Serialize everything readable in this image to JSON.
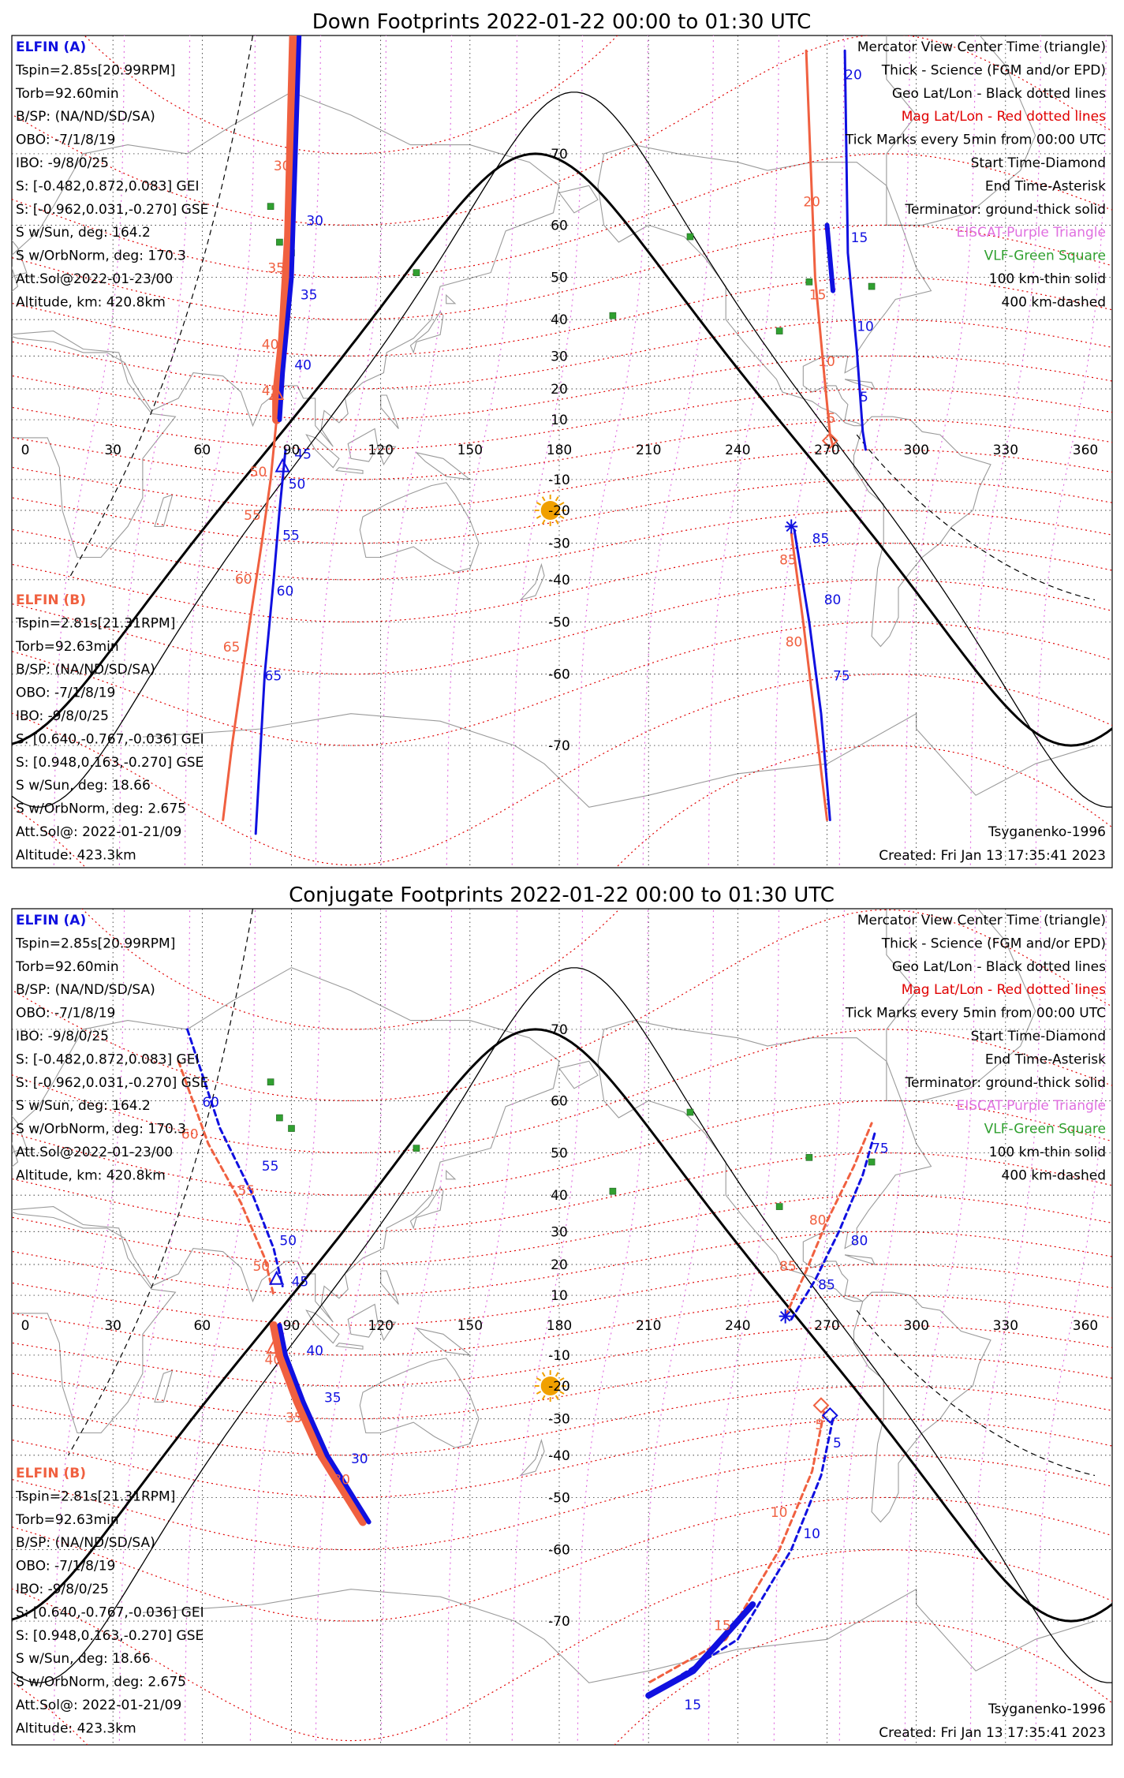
{
  "colors": {
    "a": "#1010e0",
    "b": "#f06040",
    "mag": "#e00000",
    "geo": "#000000",
    "eiscat": "#e070e0",
    "vlf": "#30a030",
    "sun": "#f0a000"
  },
  "lon_ticks": [
    "0",
    "30",
    "60",
    "90",
    "120",
    "150",
    "180",
    "210",
    "240",
    "270",
    "300",
    "330",
    "360"
  ],
  "panels": [
    {
      "title": "Down Footprints 2022-01-22 00:00 to 01:30 UTC",
      "lat_ticks": [
        {
          "v": 70,
          "t": "70"
        },
        {
          "v": 60,
          "t": "60"
        },
        {
          "v": 50,
          "t": "50"
        },
        {
          "v": 40,
          "t": "40"
        },
        {
          "v": 30,
          "t": "30"
        },
        {
          "v": 20,
          "t": "20"
        },
        {
          "v": 10,
          "t": "10"
        },
        {
          "v": -10,
          "t": "-10"
        },
        {
          "v": -20,
          "t": "-20"
        },
        {
          "v": -30,
          "t": "-30"
        },
        {
          "v": -40,
          "t": "-40"
        },
        {
          "v": -50,
          "t": "-50"
        },
        {
          "v": -60,
          "t": "-60"
        },
        {
          "v": -70,
          "t": "-70"
        }
      ],
      "info_a": [
        "ELFIN (A)",
        "Tspin=2.85s[20.99RPM]",
        "Torb=92.60min",
        "B/SP: (NA/ND/SD/SA)",
        "OBO: -7/1/8/19",
        "IBO: -9/8/0/25",
        "S: [-0.482,0.872,0.083] GEI",
        "S: [-0.962,0.031,-0.270] GSE",
        "S w/Sun, deg: 164.2",
        "S w/OrbNorm, deg: 170.3",
        "Att.Sol@2022-01-23/00",
        "Altitude, km: 420.8km"
      ],
      "info_b": [
        "ELFIN (B)",
        "Tspin=2.81s[21.31RPM]",
        "Torb=92.63min",
        "B/SP: (NA/ND/SD/SA)",
        "OBO: -7/1/8/19",
        "IBO: -9/8/0/25",
        "S: [0.640,-0.767,-0.036] GEI",
        "S: [0.948,0.163,-0.270] GSE",
        "S w/Sun, deg: 18.66",
        "S w/OrbNorm, deg: 2.675",
        "Att.Sol@: 2022-01-21/09",
        "Altitude: 423.3km"
      ],
      "legend": [
        "Mercator View Center Time (triangle)",
        "Thick - Science (FGM and/or EPD)",
        "Geo Lat/Lon - Black dotted lines",
        "Mag Lat/Lon - Red dotted lines",
        "Tick Marks every 5min from 00:00 UTC",
        "Start Time-Diamond",
        "End Time-Asterisk",
        "Terminator: ground-thick solid",
        "EISCAT-Purple Triangle",
        "VLF-Green Square",
        "100 km-thin solid",
        "400 km-dashed"
      ],
      "model": "Tsyganenko-1996",
      "created": "Created: Fri Jan 13 17:35:41 2023",
      "labels_a": [
        {
          "t": "20",
          "lon": 276,
          "lat": 77
        },
        {
          "t": "15",
          "lon": 278,
          "lat": 57
        },
        {
          "t": "10",
          "lon": 280,
          "lat": 37
        },
        {
          "t": "5",
          "lon": 281,
          "lat": 16
        },
        {
          "t": "30",
          "lon": 95,
          "lat": 60
        },
        {
          "t": "35",
          "lon": 93,
          "lat": 45
        },
        {
          "t": "40",
          "lon": 91,
          "lat": 26
        },
        {
          "t": "45",
          "lon": 91,
          "lat": -3
        },
        {
          "t": "50",
          "lon": 89,
          "lat": -13
        },
        {
          "t": "55",
          "lon": 87,
          "lat": -29
        },
        {
          "t": "60",
          "lon": 85,
          "lat": -44
        },
        {
          "t": "65",
          "lon": 81,
          "lat": -61
        },
        {
          "t": "75",
          "lon": 272,
          "lat": -61
        },
        {
          "t": "80",
          "lon": 269,
          "lat": -46
        },
        {
          "t": "85",
          "lon": 265,
          "lat": -30
        }
      ],
      "labels_b": [
        {
          "t": "20",
          "lon": 262,
          "lat": 63
        },
        {
          "t": "15",
          "lon": 264,
          "lat": 45
        },
        {
          "t": "10",
          "lon": 267,
          "lat": 27
        },
        {
          "t": "5",
          "lon": 270,
          "lat": 9
        },
        {
          "t": "30",
          "lon": 84,
          "lat": 68
        },
        {
          "t": "35",
          "lon": 82,
          "lat": 51
        },
        {
          "t": "40",
          "lon": 80,
          "lat": 32
        },
        {
          "t": "45",
          "lon": 80,
          "lat": 18
        },
        {
          "t": "50",
          "lon": 76,
          "lat": -9
        },
        {
          "t": "55",
          "lon": 74,
          "lat": -23
        },
        {
          "t": "60",
          "lon": 71,
          "lat": -41
        },
        {
          "t": "65",
          "lon": 67,
          "lat": -56
        },
        {
          "t": "80",
          "lon": 256,
          "lat": -55
        },
        {
          "t": "85",
          "lon": 254,
          "lat": -36
        }
      ],
      "mag_labels": [
        "70",
        "60",
        "50",
        "40",
        "30",
        "20",
        "10",
        "-10",
        "-20",
        "-30",
        "-40",
        "-50",
        "-60",
        "-70"
      ]
    },
    {
      "title": "Conjugate Footprints 2022-01-22 00:00 to 01:30 UTC",
      "lat_ticks": [
        {
          "v": 70,
          "t": "70"
        },
        {
          "v": 60,
          "t": "60"
        },
        {
          "v": 50,
          "t": "50"
        },
        {
          "v": 40,
          "t": "40"
        },
        {
          "v": 30,
          "t": "30"
        },
        {
          "v": 20,
          "t": "20"
        },
        {
          "v": 10,
          "t": "10"
        },
        {
          "v": -10,
          "t": "-10"
        },
        {
          "v": -20,
          "t": "-20"
        },
        {
          "v": -30,
          "t": "-30"
        },
        {
          "v": -40,
          "t": "-40"
        },
        {
          "v": -50,
          "t": "-50"
        },
        {
          "v": -60,
          "t": "-60"
        },
        {
          "v": -70,
          "t": "-70"
        }
      ],
      "info_a": [
        "ELFIN (A)",
        "Tspin=2.85s[20.99RPM]",
        "Torb=92.60min",
        "B/SP: (NA/ND/SD/SA)",
        "OBO: -7/1/8/19",
        "IBO: -9/8/0/25",
        "S: [-0.482,0.872,0.083] GEI",
        "S: [-0.962,0.031,-0.270] GSE",
        "S w/Sun, deg: 164.2",
        "S w/OrbNorm, deg: 170.3",
        "Att.Sol@2022-01-23/00",
        "Altitude, km: 420.8km"
      ],
      "info_b": [
        "ELFIN (B)",
        "Tspin=2.81s[21.31RPM]",
        "Torb=92.63min",
        "B/SP: (NA/ND/SD/SA)",
        "OBO: -7/1/8/19",
        "IBO: -9/8/0/25",
        "S: [0.640,-0.767,-0.036] GEI",
        "S: [0.948,0.163,-0.270] GSE",
        "S w/Sun, deg: 18.66",
        "S w/OrbNorm, deg: 2.675",
        "Att.Sol@: 2022-01-21/09",
        "Altitude: 423.3km"
      ],
      "legend": [
        "Mercator View Center Time (triangle)",
        "Thick - Science (FGM and/or EPD)",
        "Geo Lat/Lon - Black dotted lines",
        "Mag Lat/Lon - Red dotted lines",
        "Tick Marks every 5min from 00:00 UTC",
        "Start Time-Diamond",
        "End Time-Asterisk",
        "Terminator: ground-thick solid",
        "EISCAT-Purple Triangle",
        "VLF-Green Square",
        "100 km-thin solid",
        "400 km-dashed"
      ],
      "model": "Tsyganenko-1996",
      "created": "Created: Fri Jan 13 17:35:41 2023",
      "labels_a": [
        {
          "t": "60",
          "lon": 60,
          "lat": 59
        },
        {
          "t": "55",
          "lon": 80,
          "lat": 46
        },
        {
          "t": "50",
          "lon": 86,
          "lat": 26
        },
        {
          "t": "45",
          "lon": 90,
          "lat": 13
        },
        {
          "t": "40",
          "lon": 95,
          "lat": -10
        },
        {
          "t": "35",
          "lon": 101,
          "lat": -25
        },
        {
          "t": "30",
          "lon": 110,
          "lat": -42
        },
        {
          "t": "85",
          "lon": 267,
          "lat": 12
        },
        {
          "t": "80",
          "lon": 278,
          "lat": 26
        },
        {
          "t": "75",
          "lon": 285,
          "lat": 50
        },
        {
          "t": "5",
          "lon": 272,
          "lat": -38
        },
        {
          "t": "10",
          "lon": 262,
          "lat": -58
        },
        {
          "t": "15",
          "lon": 222,
          "lat": -78
        }
      ],
      "labels_b": [
        {
          "t": "60",
          "lon": 53,
          "lat": 53
        },
        {
          "t": "55",
          "lon": 72,
          "lat": 40
        },
        {
          "t": "50",
          "lon": 77,
          "lat": 18
        },
        {
          "t": "40",
          "lon": 81,
          "lat": -13
        },
        {
          "t": "35",
          "lon": 88,
          "lat": -31
        },
        {
          "t": "30",
          "lon": 104,
          "lat": -47
        },
        {
          "t": "85",
          "lon": 254,
          "lat": 18
        },
        {
          "t": "80",
          "lon": 264,
          "lat": 32
        },
        {
          "t": "5",
          "lon": 266,
          "lat": -33
        },
        {
          "t": "10",
          "lon": 251,
          "lat": -54
        },
        {
          "t": "15",
          "lon": 232,
          "lat": -71
        }
      ],
      "mag_labels": [
        "70",
        "60",
        "50",
        "40",
        "30",
        "20",
        "10",
        "-10",
        "-20",
        "-30",
        "-40",
        "-50",
        "-60",
        "-70"
      ]
    }
  ]
}
